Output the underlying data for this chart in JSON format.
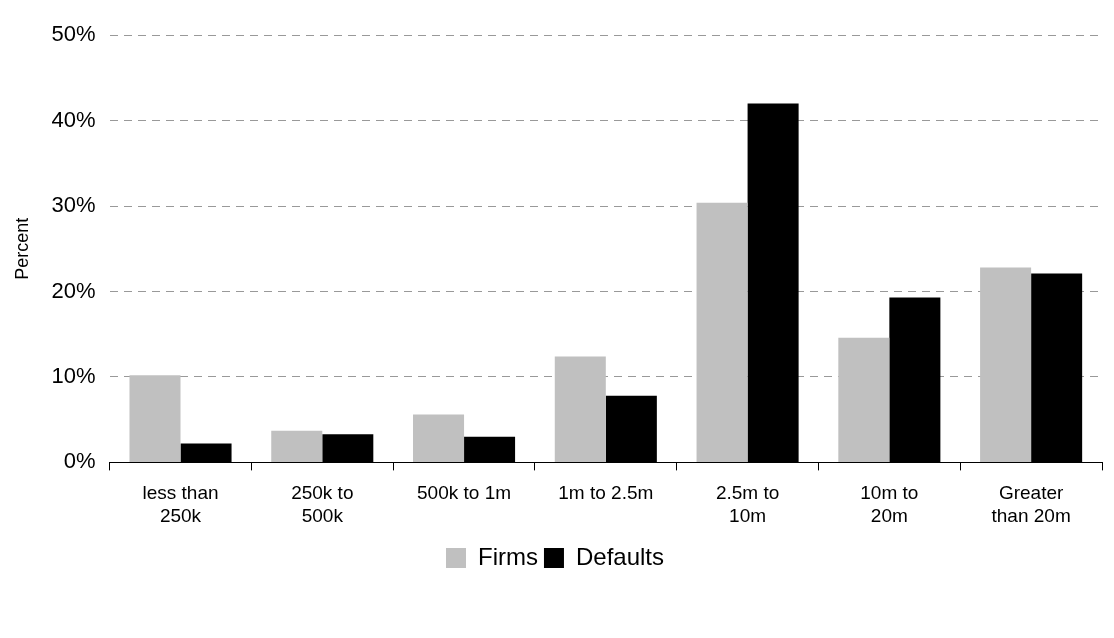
{
  "chart_data": {
    "type": "bar",
    "ylabel": "Percent",
    "categories": [
      "less than\n250k",
      "250k to\n500k",
      "500k to 1m",
      "1m to 2.5m",
      "2.5m to\n10m",
      "10m to\n20m",
      "Greater\nthan 20m"
    ],
    "series": [
      {
        "name": "Firms",
        "color": "#c0c0c0",
        "values": [
          10.2,
          3.7,
          5.6,
          12.4,
          30.4,
          14.6,
          22.8
        ]
      },
      {
        "name": "Defaults",
        "color": "#000000",
        "values": [
          2.2,
          3.3,
          3.0,
          7.8,
          42.0,
          19.3,
          22.1
        ]
      }
    ],
    "ylim": [
      0,
      50
    ],
    "yticks": [
      {
        "value": 0,
        "label": "0%"
      },
      {
        "value": 10,
        "label": "10%"
      },
      {
        "value": 20,
        "label": "20%"
      },
      {
        "value": 30,
        "label": "30%"
      },
      {
        "value": 40,
        "label": "40%"
      },
      {
        "value": 50,
        "label": "50%"
      }
    ],
    "grid": "y",
    "legend": "bottom"
  }
}
